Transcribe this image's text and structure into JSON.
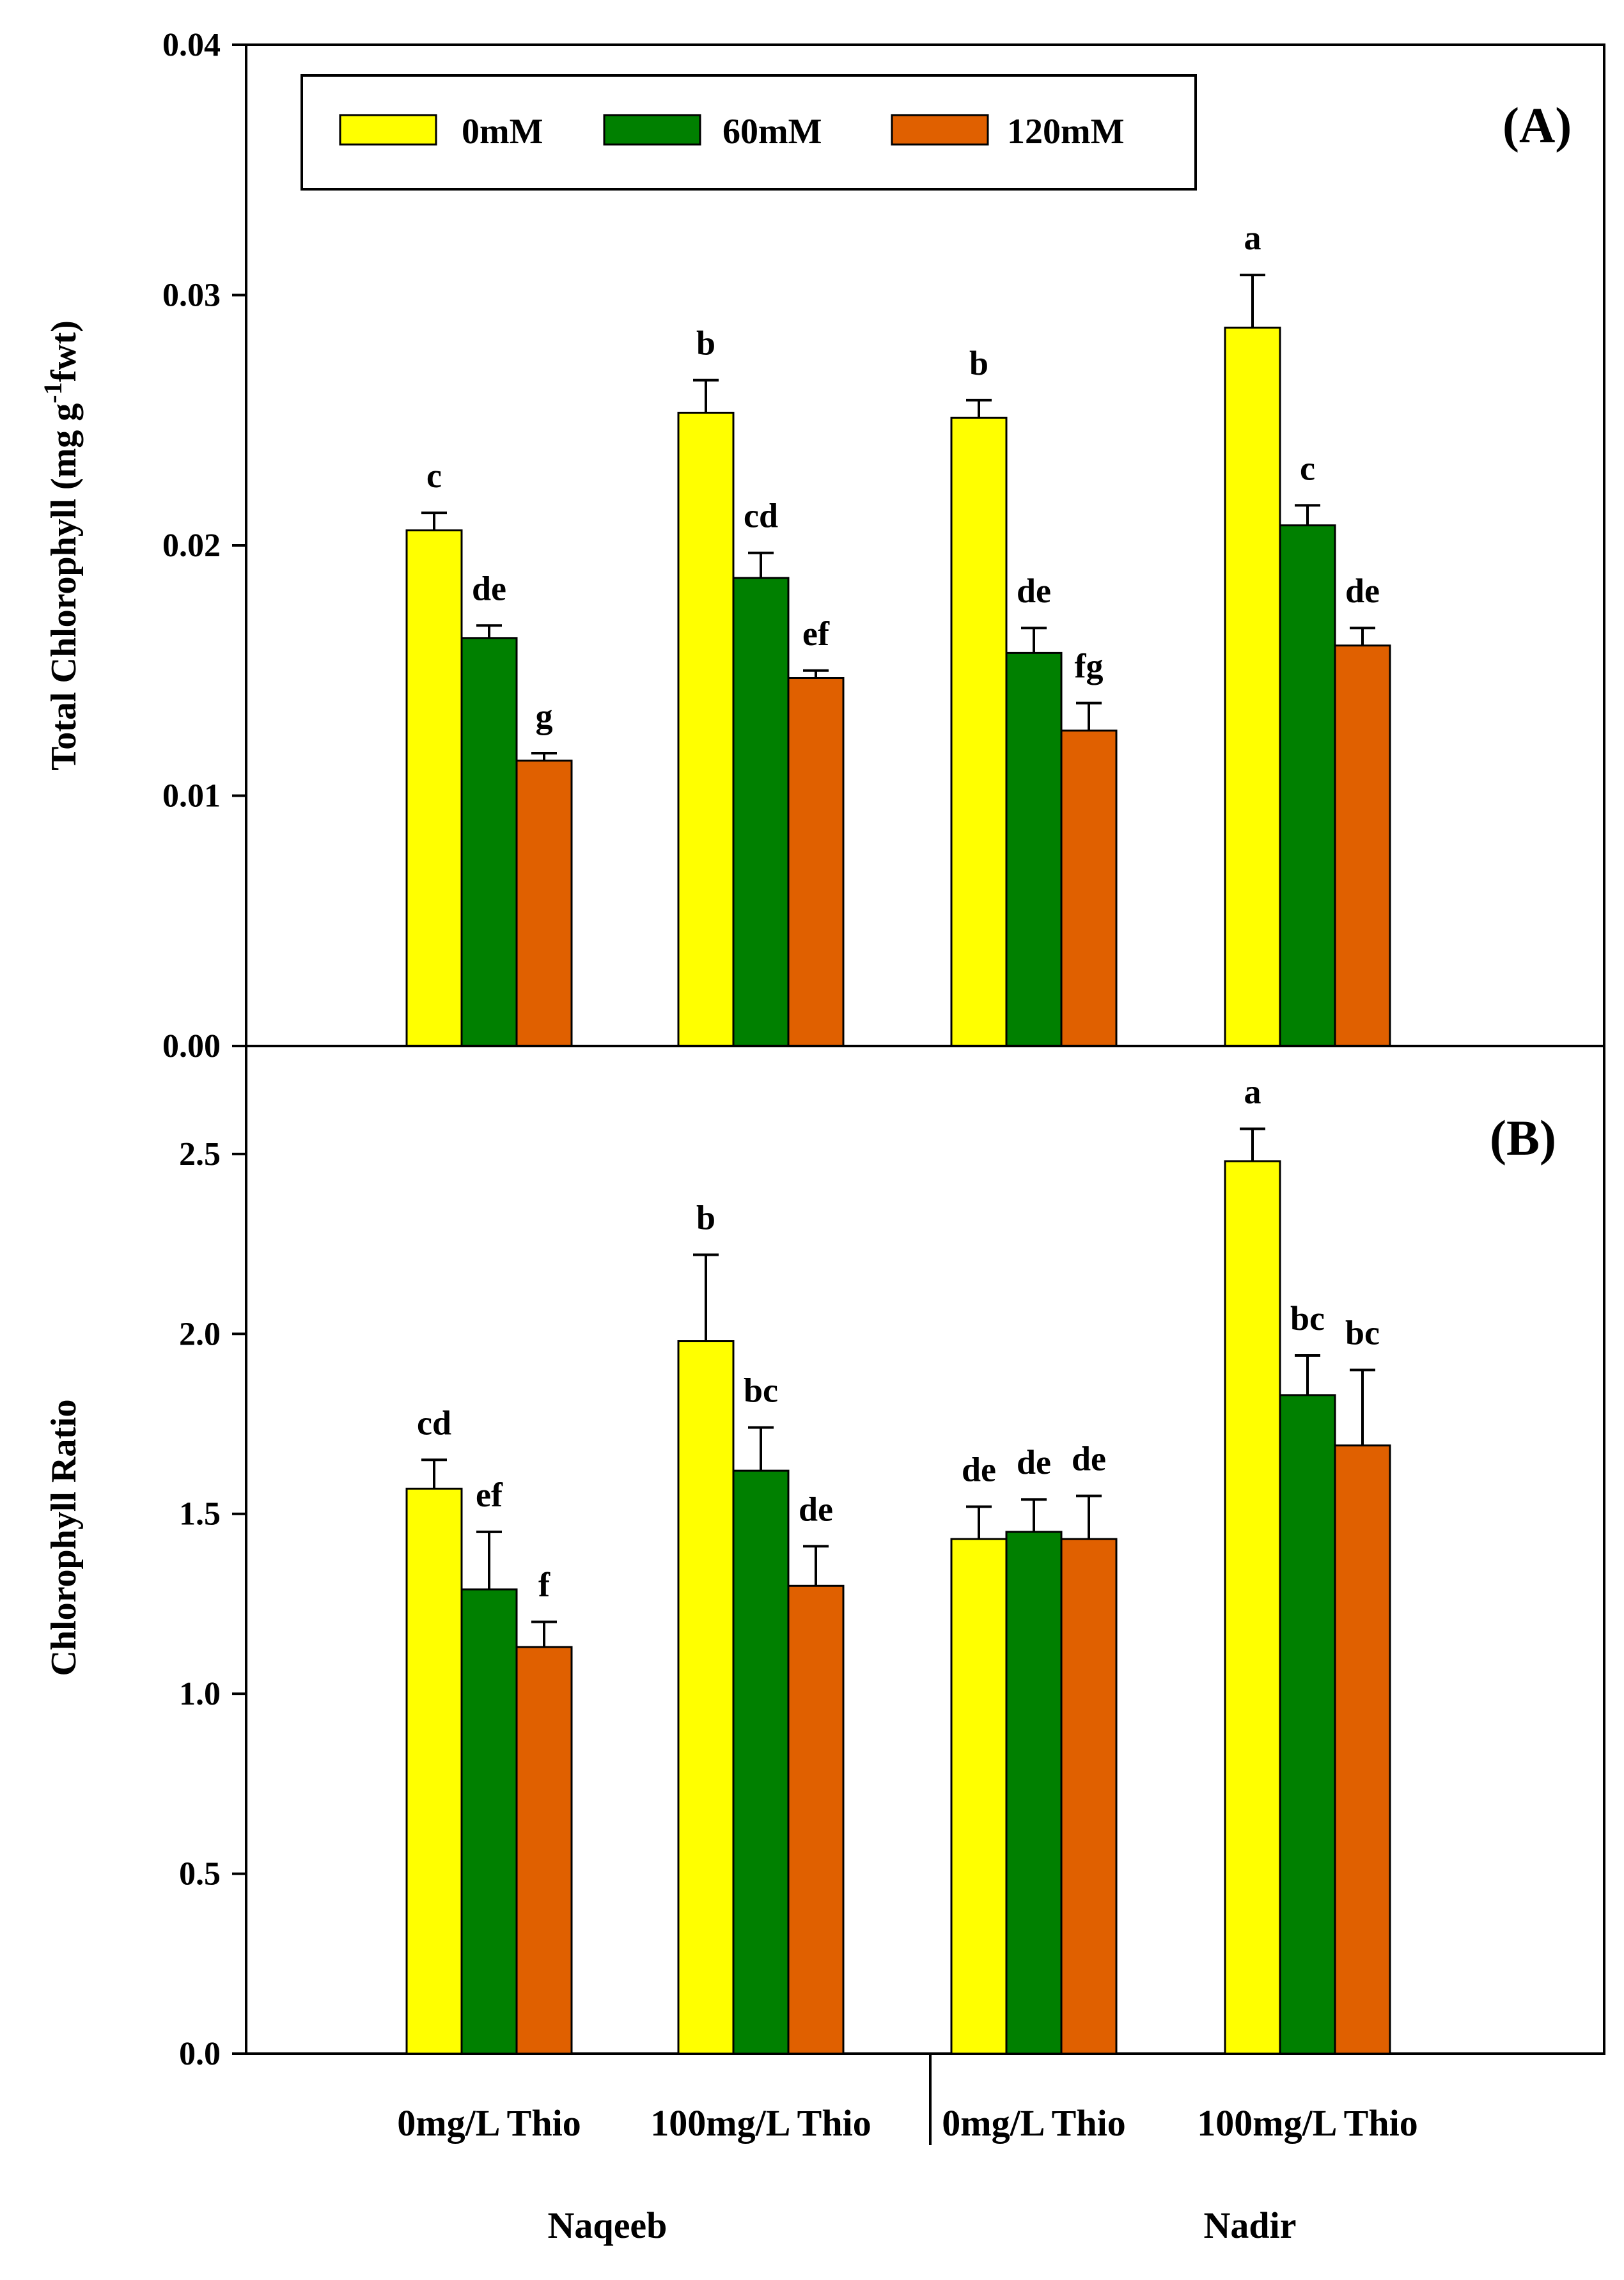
{
  "chart_data": [
    {
      "type": "bar",
      "panel_label": "(A)",
      "ylabel": "Total Chlorophyll (mg g",
      "ylabel_sup": "-1",
      "ylabel_tail": "fwt)",
      "ylim": [
        0,
        0.04
      ],
      "yticks": [
        "0.00",
        "0.01",
        "0.02",
        "0.03",
        "0.04"
      ],
      "categories": [
        "0mg/L Thio",
        "100mg/L Thio",
        "0mg/L Thio",
        "100mg/L Thio"
      ],
      "series": [
        {
          "name": "0mM",
          "color": "#FFFF00",
          "values": [
            0.0206,
            0.0253,
            0.0251,
            0.0287
          ],
          "errors": [
            0.0007,
            0.0013,
            0.0007,
            0.0021
          ],
          "labels": [
            "c",
            "b",
            "b",
            "a"
          ]
        },
        {
          "name": "60mM",
          "color": "#008000",
          "values": [
            0.0163,
            0.0187,
            0.0157,
            0.0208
          ],
          "errors": [
            0.0005,
            0.001,
            0.001,
            0.0008
          ],
          "labels": [
            "de",
            "cd",
            "de",
            "c"
          ]
        },
        {
          "name": "120mM",
          "color": "#E06000",
          "values": [
            0.0114,
            0.0147,
            0.0126,
            0.016
          ],
          "errors": [
            0.0003,
            0.0003,
            0.0011,
            0.0007
          ],
          "labels": [
            "g",
            "ef",
            "fg",
            "de"
          ]
        }
      ],
      "legend": {
        "placement": "top-left",
        "entries": [
          "0mM",
          "60mM",
          "120mM"
        ]
      }
    },
    {
      "type": "bar",
      "panel_label": "(B)",
      "ylabel": "Chlorophyll Ratio",
      "ylim": [
        0,
        2.8
      ],
      "yticks": [
        "0.0",
        "0.5",
        "1.0",
        "1.5",
        "2.0",
        "2.5"
      ],
      "categories": [
        "0mg/L Thio",
        "100mg/L Thio",
        "0mg/L Thio",
        "100mg/L Thio"
      ],
      "series": [
        {
          "name": "0mM",
          "color": "#FFFF00",
          "values": [
            1.57,
            1.98,
            1.43,
            2.48
          ],
          "errors": [
            0.08,
            0.24,
            0.09,
            0.09
          ],
          "labels": [
            "cd",
            "b",
            "de",
            "a"
          ]
        },
        {
          "name": "60mM",
          "color": "#008000",
          "values": [
            1.29,
            1.62,
            1.45,
            1.83
          ],
          "errors": [
            0.16,
            0.12,
            0.09,
            0.11
          ],
          "labels": [
            "ef",
            "bc",
            "de",
            "bc"
          ]
        },
        {
          "name": "120mM",
          "color": "#E06000",
          "values": [
            1.13,
            1.3,
            1.43,
            1.69
          ],
          "errors": [
            0.07,
            0.11,
            0.12,
            0.21
          ],
          "labels": [
            "f",
            "de",
            "de",
            "bc"
          ]
        }
      ]
    }
  ],
  "varieties": [
    "Naqeeb",
    "Nadir"
  ]
}
